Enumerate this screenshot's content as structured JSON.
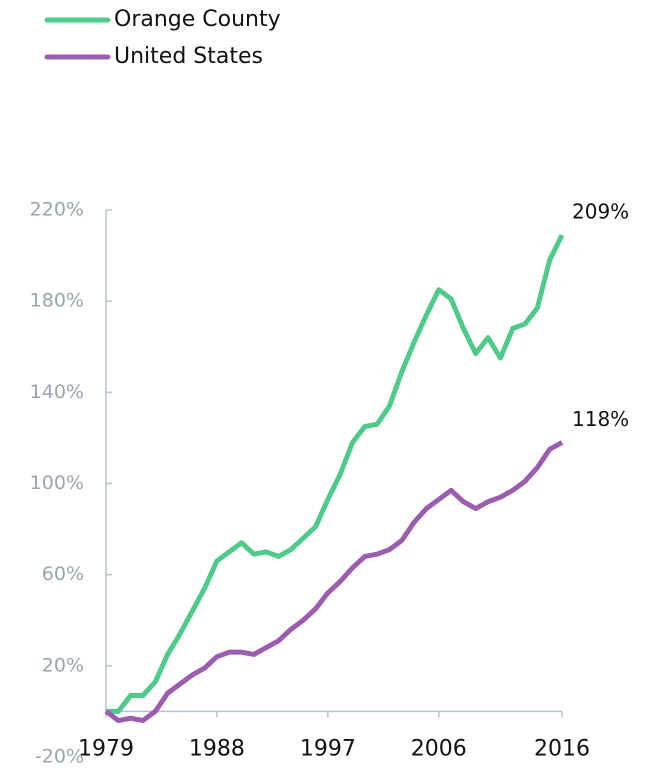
{
  "chart_data": {
    "type": "line",
    "x": [
      1979,
      1980,
      1981,
      1982,
      1983,
      1984,
      1985,
      1986,
      1987,
      1988,
      1989,
      1990,
      1991,
      1992,
      1993,
      1994,
      1995,
      1996,
      1997,
      1998,
      1999,
      2000,
      2001,
      2002,
      2003,
      2004,
      2005,
      2006,
      2007,
      2008,
      2009,
      2010,
      2011,
      2012,
      2013,
      2014,
      2015,
      2016
    ],
    "series": [
      {
        "name": "Orange County",
        "color": "#4fca8a",
        "end_label": "209%",
        "values": [
          0,
          0,
          7,
          7,
          13,
          25,
          34,
          44,
          54,
          66,
          70,
          74,
          69,
          70,
          68,
          71,
          76,
          81,
          93,
          104,
          118,
          125,
          126,
          134,
          149,
          162,
          174,
          185,
          181,
          168,
          157,
          164,
          155,
          168,
          170,
          177,
          198,
          209
        ]
      },
      {
        "name": "United States",
        "color": "#9b5eae",
        "end_label": "118%",
        "values": [
          0,
          -4,
          -3,
          -4,
          0,
          8,
          12,
          16,
          19,
          24,
          26,
          26,
          25,
          28,
          31,
          36,
          40,
          45,
          52,
          57,
          63,
          68,
          69,
          71,
          75,
          83,
          89,
          93,
          97,
          92,
          89,
          92,
          94,
          97,
          101,
          107,
          115,
          118
        ]
      }
    ],
    "xlim": [
      1979,
      2016
    ],
    "xticks": [
      1979,
      1988,
      1997,
      2006,
      2016
    ],
    "ylim": [
      -20,
      220
    ],
    "yticks": [
      {
        "value": -20,
        "label": "-20%"
      },
      {
        "value": 20,
        "label": "20%"
      },
      {
        "value": 60,
        "label": "60%"
      },
      {
        "value": 100,
        "label": "100%"
      },
      {
        "value": 140,
        "label": "140%"
      },
      {
        "value": 180,
        "label": "180%"
      },
      {
        "value": 220,
        "label": "220%"
      }
    ],
    "legend": "top-left"
  }
}
